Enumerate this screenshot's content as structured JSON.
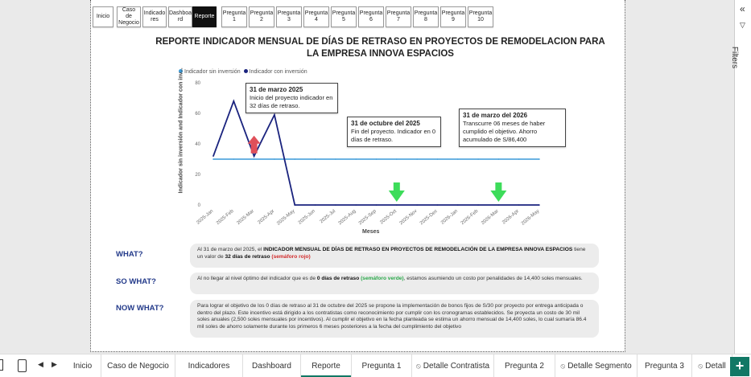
{
  "nav": [
    {
      "label": "Inicio",
      "active": false
    },
    {
      "label": "Caso de\nNegocio",
      "active": false
    },
    {
      "label": "Indicado\nres",
      "active": false
    },
    {
      "label": "Dashboa\nrd",
      "active": false
    },
    {
      "label": "Reporte",
      "active": true
    },
    {
      "label": "Pregunta\n1",
      "active": false
    },
    {
      "label": "Pregunta\n2",
      "active": false
    },
    {
      "label": "Pregunta\n3",
      "active": false
    },
    {
      "label": "Pregunta\n4",
      "active": false
    },
    {
      "label": "Pregunta\n5",
      "active": false
    },
    {
      "label": "Pregunta\n6",
      "active": false
    },
    {
      "label": "Pregunta\n7",
      "active": false
    },
    {
      "label": "Pregunta\n8",
      "active": false
    },
    {
      "label": "Pregunta\n9",
      "active": false
    },
    {
      "label": "Pregunta\n10",
      "active": false
    }
  ],
  "report_title": "REPORTE INDICADOR MENSUAL DE DÍAS DE RETRASO EN PROYECTOS DE REMODELACION PARA LA EMPRESA INNOVA ESPACIOS",
  "chart_data": {
    "type": "line",
    "xlabel": "Meses",
    "ylabel": "Indicador sin inversión and Indicador con inv...",
    "ylim": [
      0,
      80
    ],
    "yticks": [
      0,
      20,
      40,
      60,
      80
    ],
    "categories": [
      "2025-Jan",
      "2025-Feb",
      "2025-Mar",
      "2025-Apr",
      "2025-May",
      "2025-Jun",
      "2025-Jul",
      "2025-Aug",
      "2025-Sep",
      "2025-Oct",
      "2025-Nov",
      "2025-Dec",
      "2026-Jan",
      "2026-Feb",
      "2026-Mar",
      "2026-Apr",
      "2026-May"
    ],
    "series": [
      {
        "name": "Indicador sin inversión",
        "color": "#3a9ad9",
        "values": [
          30,
          30,
          30,
          30,
          30,
          30,
          30,
          30,
          30,
          30,
          30,
          30,
          30,
          30,
          30,
          30,
          30
        ]
      },
      {
        "name": "Indicador con inversión",
        "color": "#1a237e",
        "values": [
          32,
          68,
          32,
          59,
          0,
          0,
          0,
          0,
          0,
          0,
          0,
          0,
          0,
          0,
          0,
          0,
          0
        ]
      }
    ],
    "legend_position": "top-left",
    "colors": {
      "arrow_up": "#e0505a",
      "arrow_down": "#3ddc5a"
    }
  },
  "annotations": [
    {
      "title": "31 de marzo 2025",
      "text": "Inicio del proyecto indicador en 32 días de retraso."
    },
    {
      "title": "31 de octubre del 2025",
      "text": "Fin del proyecto. Indicador en 0 días de retraso."
    },
    {
      "title": "31 de marzo del 2026",
      "text": "Transcurre 06 meses de haber cumplido el objetivo. Ahorro acumulado de S/86,400"
    }
  ],
  "what": {
    "label": "WHAT?",
    "t1": "Al 31 de marzo del 2025, el ",
    "b1": "INDICADOR MENSUAL DE DÍAS DE RETRASO EN PROYECTOS DE REMODELACIÓN DE LA EMPRESA INNOVA ESPACIOS",
    "t2": " tiene un valor de ",
    "b2": "32 días de retraso",
    "t3": " ",
    "red": "(semáforo rojo)"
  },
  "so_what": {
    "label": "SO WHAT?",
    "t1": "Al no llegar al nivel óptimo del indicador que es de ",
    "b1": "0 días de retraso",
    "t2": " ",
    "green": "(semáforo verde)",
    "t3": ", estamos asumiendo un costo por penalidades de 14,400 soles mensuales."
  },
  "now_what": {
    "label": "NOW WHAT?",
    "text": "Para lograr el objetivo de los 0 días de retraso al 31 de octubre del 2025 se propone la implementación de bonos fijos de S/30 por proyecto por entrega anticipada o dentro del plazo. Este incentivo está dirigido a los contratistas como reconocimiento por cumplir con los cronogramas establecidos. Se proyecta un costo de 30 mil soles anuales  (2,500 soles mensuales por incentivos). Al cumplir el objetivo en la fecha planteada se estima un ahorro mensual de 14,400 soles, lo cual sumaría 86.4 mil soles de ahorro solamente durante los primeros 6 meses posteriores a la fecha del cumplimiento del objetivo"
  },
  "filters_label": "Filters",
  "tabs": [
    {
      "label": "Inicio",
      "icon": false
    },
    {
      "label": "Caso de Negocio",
      "icon": false
    },
    {
      "label": "Indicadores",
      "icon": false
    },
    {
      "label": "Dashboard",
      "icon": false
    },
    {
      "label": "Reporte",
      "icon": false,
      "active": true
    },
    {
      "label": "Pregunta 1",
      "icon": false
    },
    {
      "label": "Detalle Contratista",
      "icon": true
    },
    {
      "label": "Pregunta 2",
      "icon": false
    },
    {
      "label": "Detalle Segmento",
      "icon": true
    },
    {
      "label": "Pregunta 3",
      "icon": false
    },
    {
      "label": "Detall",
      "icon": true
    }
  ],
  "add_tab": "+"
}
